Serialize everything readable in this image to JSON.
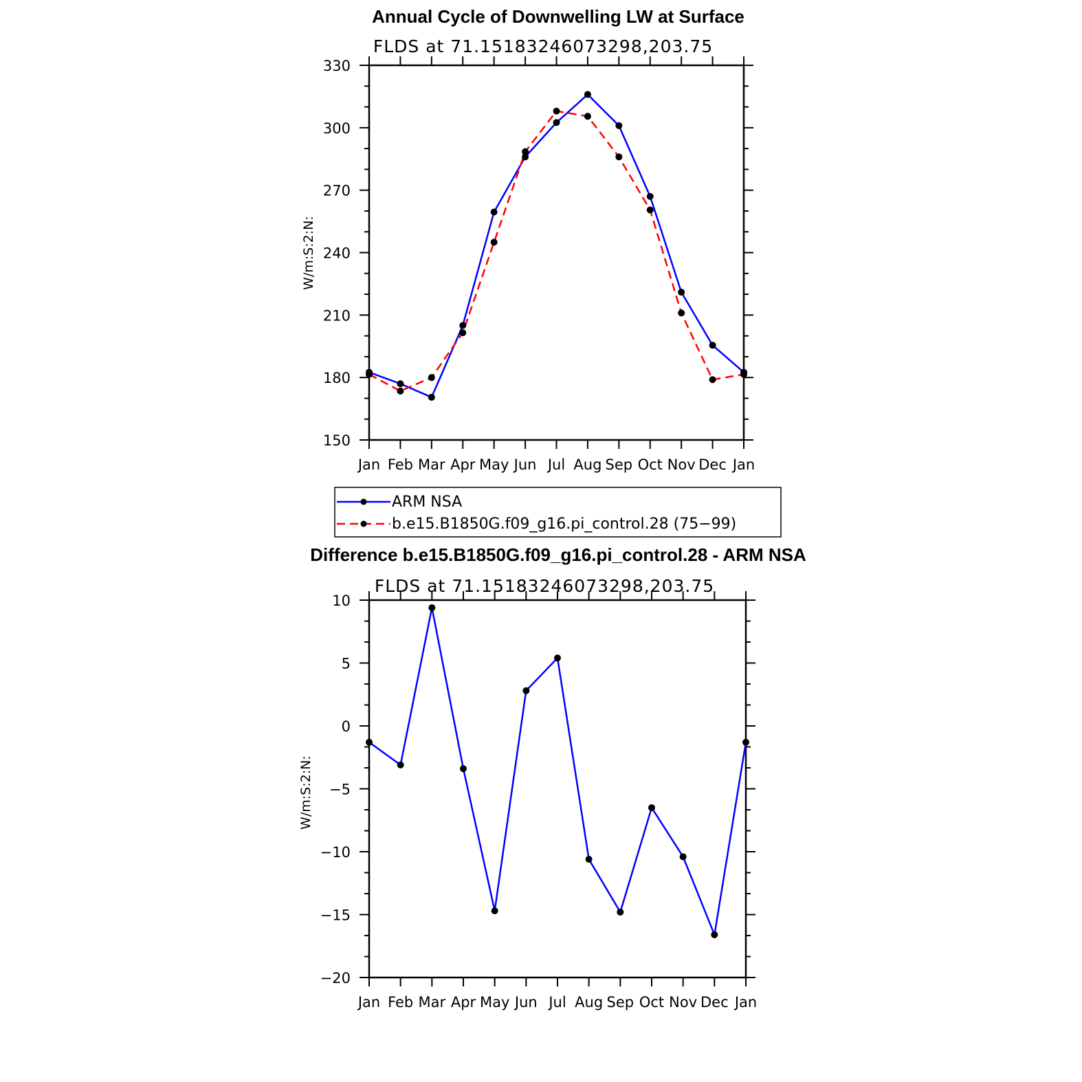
{
  "chart_data": [
    {
      "type": "line",
      "title": "Annual Cycle of Downwelling LW at Surface",
      "subtitle": "FLDS at 71.15183246073298,203.75",
      "ylabel": "W/m:S:2:N:",
      "xlabel": "",
      "categories": [
        "Jan",
        "Feb",
        "Mar",
        "Apr",
        "May",
        "Jun",
        "Jul",
        "Aug",
        "Sep",
        "Oct",
        "Nov",
        "Dec",
        "Jan"
      ],
      "ylim": [
        150,
        330
      ],
      "yticks": [
        150,
        180,
        210,
        240,
        270,
        300,
        330
      ],
      "series": [
        {
          "name": "ARM NSA",
          "color": "#0000ff",
          "dash": "solid",
          "values": [
            182.5,
            177,
            170.5,
            205,
            259.5,
            286,
            302.5,
            316,
            301,
            267,
            221,
            195.5,
            182.5
          ]
        },
        {
          "name": "b.e15.B1850G.f09_g16.pi_control.28 (75−99)",
          "color": "#ff0000",
          "dash": "dashed",
          "values": [
            181.5,
            173.5,
            180,
            201.5,
            245,
            288.5,
            308,
            305.5,
            286,
            260.5,
            211,
            179,
            181.5
          ]
        }
      ],
      "legend": "below"
    },
    {
      "type": "line",
      "title": "Difference b.e15.B1850G.f09_g16.pi_control.28 - ARM NSA",
      "subtitle": "FLDS at 71.15183246073298,203.75",
      "ylabel": "W/m:S:2:N:",
      "xlabel": "",
      "categories": [
        "Jan",
        "Feb",
        "Mar",
        "Apr",
        "May",
        "Jun",
        "Jul",
        "Aug",
        "Sep",
        "Oct",
        "Nov",
        "Dec",
        "Jan"
      ],
      "ylim": [
        -20,
        10
      ],
      "yticks": [
        -20,
        -15,
        -10,
        -5,
        0,
        5,
        10
      ],
      "ytick_labels": [
        "−20",
        "−15",
        "−10",
        "−5",
        "0",
        "5",
        "10"
      ],
      "series": [
        {
          "color": "#0000ff",
          "dash": "solid",
          "values": [
            -1.3,
            -3.1,
            9.4,
            -3.4,
            -14.7,
            2.8,
            5.4,
            -10.6,
            -14.8,
            -6.5,
            -10.4,
            -16.6,
            -1.3
          ]
        }
      ]
    }
  ]
}
